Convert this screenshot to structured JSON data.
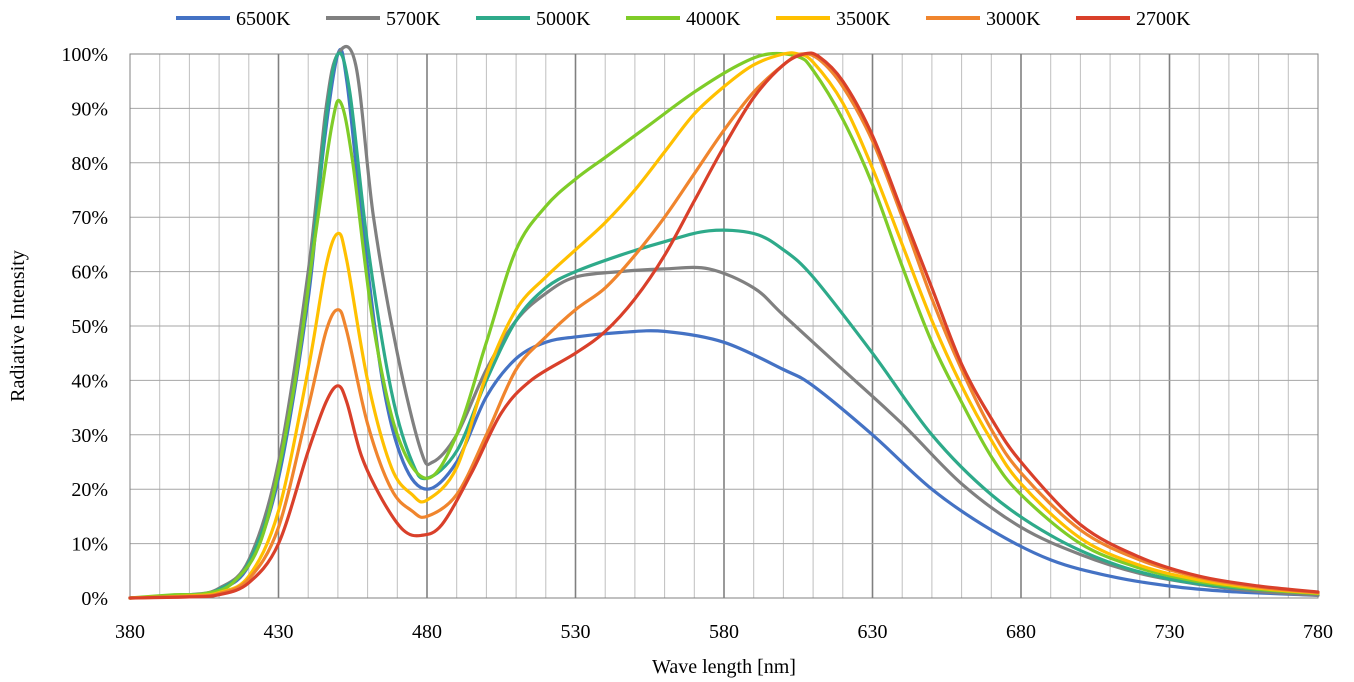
{
  "chart_data": {
    "type": "line",
    "title": "",
    "xlabel": "Wave length [nm]",
    "ylabel": "Radiative Intensity",
    "xlim": [
      380,
      780
    ],
    "ylim": [
      0,
      100
    ],
    "x_ticks": [
      380,
      430,
      480,
      530,
      580,
      630,
      680,
      730,
      780
    ],
    "x_tick_labels": [
      "380",
      "430",
      "480",
      "530",
      "580",
      "630",
      "680",
      "730",
      "780"
    ],
    "x_minor_step": 10,
    "y_ticks": [
      0,
      10,
      20,
      30,
      40,
      50,
      60,
      70,
      80,
      90,
      100
    ],
    "y_tick_labels": [
      "0%",
      "10%",
      "20%",
      "30%",
      "40%",
      "50%",
      "60%",
      "70%",
      "80%",
      "90%",
      "100%"
    ],
    "grid": true,
    "legend_position": "top",
    "series": [
      {
        "name": "6500K",
        "color": "#4472C4",
        "points": [
          [
            380,
            0
          ],
          [
            400,
            0.5
          ],
          [
            410,
            1.5
          ],
          [
            420,
            6
          ],
          [
            430,
            22
          ],
          [
            440,
            55
          ],
          [
            445,
            82
          ],
          [
            450,
            100
          ],
          [
            453,
            95
          ],
          [
            458,
            70
          ],
          [
            465,
            40
          ],
          [
            472,
            25
          ],
          [
            480,
            20
          ],
          [
            490,
            25
          ],
          [
            500,
            37
          ],
          [
            510,
            44
          ],
          [
            520,
            47
          ],
          [
            530,
            48
          ],
          [
            545,
            48.8
          ],
          [
            560,
            49
          ],
          [
            580,
            47
          ],
          [
            600,
            42
          ],
          [
            610,
            39
          ],
          [
            630,
            30
          ],
          [
            650,
            20
          ],
          [
            670,
            12.5
          ],
          [
            690,
            7
          ],
          [
            710,
            4
          ],
          [
            730,
            2.2
          ],
          [
            750,
            1.2
          ],
          [
            780,
            0.5
          ]
        ]
      },
      {
        "name": "5700K",
        "color": "#808080",
        "points": [
          [
            380,
            0
          ],
          [
            400,
            0.6
          ],
          [
            410,
            1.8
          ],
          [
            420,
            7
          ],
          [
            430,
            25
          ],
          [
            440,
            60
          ],
          [
            446,
            90
          ],
          [
            450,
            100
          ],
          [
            456,
            98
          ],
          [
            462,
            70
          ],
          [
            470,
            45
          ],
          [
            478,
            27
          ],
          [
            482,
            25
          ],
          [
            490,
            30
          ],
          [
            500,
            42
          ],
          [
            510,
            51
          ],
          [
            520,
            56
          ],
          [
            530,
            59
          ],
          [
            545,
            60
          ],
          [
            560,
            60.5
          ],
          [
            575,
            60.5
          ],
          [
            590,
            57
          ],
          [
            600,
            52
          ],
          [
            620,
            42
          ],
          [
            640,
            32
          ],
          [
            660,
            21
          ],
          [
            680,
            13
          ],
          [
            700,
            8
          ],
          [
            720,
            4.5
          ],
          [
            740,
            2.5
          ],
          [
            760,
            1.2
          ],
          [
            780,
            0.5
          ]
        ]
      },
      {
        "name": "5000K",
        "color": "#2EAA8A",
        "points": [
          [
            380,
            0
          ],
          [
            400,
            0.5
          ],
          [
            410,
            1.6
          ],
          [
            420,
            6.5
          ],
          [
            430,
            23
          ],
          [
            440,
            57
          ],
          [
            446,
            88
          ],
          [
            450,
            100
          ],
          [
            454,
            93
          ],
          [
            460,
            65
          ],
          [
            468,
            38
          ],
          [
            475,
            25
          ],
          [
            480,
            22
          ],
          [
            490,
            27
          ],
          [
            500,
            40
          ],
          [
            510,
            51
          ],
          [
            520,
            57
          ],
          [
            530,
            60
          ],
          [
            545,
            63
          ],
          [
            560,
            65.5
          ],
          [
            575,
            67.5
          ],
          [
            590,
            67
          ],
          [
            600,
            64
          ],
          [
            610,
            59
          ],
          [
            630,
            45
          ],
          [
            650,
            30
          ],
          [
            670,
            19
          ],
          [
            690,
            11.5
          ],
          [
            710,
            6.5
          ],
          [
            730,
            3.5
          ],
          [
            750,
            2
          ],
          [
            780,
            0.8
          ]
        ]
      },
      {
        "name": "4000K",
        "color": "#7FCC28",
        "points": [
          [
            380,
            0
          ],
          [
            395,
            0.6
          ],
          [
            405,
            0.8
          ],
          [
            415,
            3
          ],
          [
            425,
            12
          ],
          [
            435,
            38
          ],
          [
            442,
            65
          ],
          [
            448,
            87
          ],
          [
            451,
            91
          ],
          [
            455,
            80
          ],
          [
            462,
            50
          ],
          [
            470,
            30
          ],
          [
            480,
            22
          ],
          [
            490,
            30
          ],
          [
            500,
            47
          ],
          [
            510,
            64
          ],
          [
            520,
            72
          ],
          [
            530,
            77
          ],
          [
            540,
            81
          ],
          [
            555,
            87
          ],
          [
            570,
            93
          ],
          [
            585,
            98
          ],
          [
            595,
            100
          ],
          [
            605,
            99.5
          ],
          [
            610,
            97
          ],
          [
            620,
            88
          ],
          [
            630,
            76
          ],
          [
            640,
            61
          ],
          [
            650,
            47
          ],
          [
            660,
            36
          ],
          [
            670,
            26
          ],
          [
            680,
            19
          ],
          [
            700,
            10
          ],
          [
            720,
            5.5
          ],
          [
            740,
            3
          ],
          [
            760,
            1.6
          ],
          [
            780,
            0.8
          ]
        ]
      },
      {
        "name": "3500K",
        "color": "#FFC000",
        "points": [
          [
            380,
            0
          ],
          [
            400,
            0.4
          ],
          [
            410,
            1
          ],
          [
            420,
            4
          ],
          [
            430,
            16
          ],
          [
            440,
            42
          ],
          [
            446,
            61
          ],
          [
            450,
            67
          ],
          [
            453,
            62
          ],
          [
            460,
            40
          ],
          [
            468,
            24
          ],
          [
            475,
            19
          ],
          [
            480,
            18
          ],
          [
            490,
            24
          ],
          [
            500,
            41
          ],
          [
            510,
            53
          ],
          [
            520,
            59
          ],
          [
            530,
            64
          ],
          [
            540,
            69
          ],
          [
            550,
            75
          ],
          [
            560,
            82
          ],
          [
            570,
            89
          ],
          [
            580,
            94
          ],
          [
            590,
            98
          ],
          [
            600,
            100
          ],
          [
            605,
            100
          ],
          [
            610,
            98.5
          ],
          [
            620,
            91
          ],
          [
            630,
            79
          ],
          [
            640,
            65
          ],
          [
            650,
            51
          ],
          [
            660,
            39
          ],
          [
            670,
            29
          ],
          [
            680,
            21
          ],
          [
            700,
            11
          ],
          [
            720,
            6
          ],
          [
            740,
            3.3
          ],
          [
            760,
            1.8
          ],
          [
            780,
            0.9
          ]
        ]
      },
      {
        "name": "3000K",
        "color": "#F0852D",
        "points": [
          [
            380,
            0
          ],
          [
            400,
            0.3
          ],
          [
            410,
            0.8
          ],
          [
            420,
            3.5
          ],
          [
            430,
            13
          ],
          [
            440,
            35
          ],
          [
            446,
            49
          ],
          [
            450,
            53
          ],
          [
            453,
            49
          ],
          [
            460,
            32
          ],
          [
            468,
            20
          ],
          [
            475,
            16
          ],
          [
            480,
            15
          ],
          [
            490,
            19
          ],
          [
            500,
            30
          ],
          [
            510,
            42
          ],
          [
            520,
            48
          ],
          [
            530,
            53
          ],
          [
            540,
            57
          ],
          [
            550,
            63
          ],
          [
            560,
            70
          ],
          [
            570,
            78
          ],
          [
            580,
            86
          ],
          [
            590,
            93
          ],
          [
            600,
            98
          ],
          [
            606,
            100
          ],
          [
            612,
            99
          ],
          [
            620,
            94
          ],
          [
            630,
            84
          ],
          [
            640,
            70
          ],
          [
            650,
            55
          ],
          [
            660,
            42
          ],
          [
            670,
            31
          ],
          [
            680,
            23
          ],
          [
            700,
            12.5
          ],
          [
            720,
            7
          ],
          [
            740,
            3.8
          ],
          [
            760,
            2
          ],
          [
            780,
            1
          ]
        ]
      },
      {
        "name": "2700K",
        "color": "#D9402A",
        "points": [
          [
            380,
            0
          ],
          [
            400,
            0.2
          ],
          [
            410,
            0.6
          ],
          [
            420,
            2.8
          ],
          [
            430,
            10
          ],
          [
            440,
            27
          ],
          [
            446,
            36
          ],
          [
            450,
            39
          ],
          [
            453,
            36
          ],
          [
            458,
            26
          ],
          [
            465,
            18
          ],
          [
            472,
            12.5
          ],
          [
            478,
            11.5
          ],
          [
            485,
            13.5
          ],
          [
            495,
            23
          ],
          [
            505,
            34
          ],
          [
            515,
            40
          ],
          [
            530,
            45
          ],
          [
            540,
            49
          ],
          [
            550,
            55
          ],
          [
            560,
            63
          ],
          [
            570,
            73
          ],
          [
            580,
            83
          ],
          [
            590,
            92
          ],
          [
            600,
            98
          ],
          [
            607,
            100
          ],
          [
            612,
            99.5
          ],
          [
            620,
            95
          ],
          [
            630,
            85
          ],
          [
            640,
            71
          ],
          [
            650,
            57
          ],
          [
            660,
            43
          ],
          [
            670,
            33
          ],
          [
            680,
            25
          ],
          [
            700,
            13.5
          ],
          [
            720,
            7.5
          ],
          [
            740,
            4
          ],
          [
            760,
            2.2
          ],
          [
            780,
            1.1
          ]
        ]
      }
    ]
  }
}
